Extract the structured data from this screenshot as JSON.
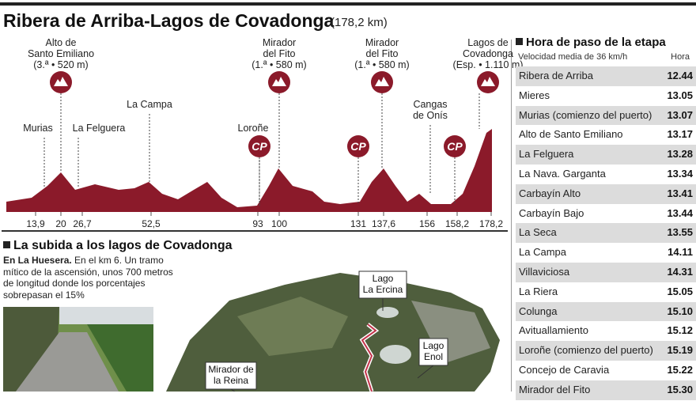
{
  "header": {
    "title": "Ribera de Arriba-Lagos de Covadonga",
    "distance": "(178,2 km)"
  },
  "profile": {
    "places": [
      {
        "lines": [
          "Alto de",
          "Santo Emiliano",
          "(3.ª • 520 m)"
        ]
      },
      {
        "lines": [
          "Mirador",
          "del Fito",
          "(1.ª • 580 m)"
        ]
      },
      {
        "lines": [
          "Mirador",
          "del Fito",
          "(1.ª • 580 m)"
        ]
      },
      {
        "lines": [
          "Lagos de",
          "Covadonga",
          "(Esp. • 1.110 m)"
        ]
      },
      {
        "lines": [
          "La Campa"
        ]
      },
      {
        "lines": [
          "Murias"
        ]
      },
      {
        "lines": [
          "La Felguera"
        ]
      },
      {
        "lines": [
          "Loroñe"
        ]
      },
      {
        "lines": [
          "Cangas",
          "de Onís"
        ]
      }
    ],
    "badge": "CP",
    "km_ticks": [
      {
        "value": 13.9,
        "label": "13,9"
      },
      20,
      {
        "value": 26.7,
        "label": "26,7"
      },
      {
        "value": 52.5,
        "label": "52,5"
      },
      93,
      100,
      131,
      {
        "value": 137.6,
        "label": "137,6"
      },
      156,
      {
        "value": 158.2,
        "label": "158,2"
      },
      {
        "value": 178.2,
        "label": "178,2"
      }
    ]
  },
  "climb": {
    "title": "La subida a los lagos de Covadonga",
    "lead": "En La Huesera.",
    "text": " En el km 6. Un tramo mítico de la ascensión, unos 700 metros de longitud donde los porcentajes sobrepasan el 15%",
    "map_labels": [
      [
        "Lago",
        "La Ercina"
      ],
      [
        "Lago",
        "Enol"
      ],
      [
        "Mirador de",
        "la Reina"
      ]
    ]
  },
  "table": {
    "title": "Hora de paso de la etapa",
    "subtitle": "Velocidad media de 36 km/h",
    "time_header": "Hora",
    "rows": [
      [
        "Ribera de Arriba",
        "12.44"
      ],
      [
        "Mieres",
        "13.05"
      ],
      [
        "Murias (comienzo del puerto)",
        "13.07"
      ],
      [
        "Alto de Santo Emiliano",
        "13.17"
      ],
      [
        "La Felguera",
        "13.28"
      ],
      [
        "La Nava. Garganta",
        "13.34"
      ],
      [
        "Carbayín Alto",
        "13.41"
      ],
      [
        "Carbayín Bajo",
        "13.44"
      ],
      [
        "La Seca",
        "13.55"
      ],
      [
        "La Campa",
        "14.11"
      ],
      [
        "Villaviciosa",
        "14.31"
      ],
      [
        "La Riera",
        "15.05"
      ],
      [
        "Colunga",
        "15.10"
      ],
      [
        "Avituallamiento",
        "15.12"
      ],
      [
        "Loroñe (comienzo del puerto)",
        "15.19"
      ],
      [
        "Concejo de Caravia",
        "15.22"
      ],
      [
        "Mirador del Fito",
        "15.30"
      ]
    ]
  }
}
